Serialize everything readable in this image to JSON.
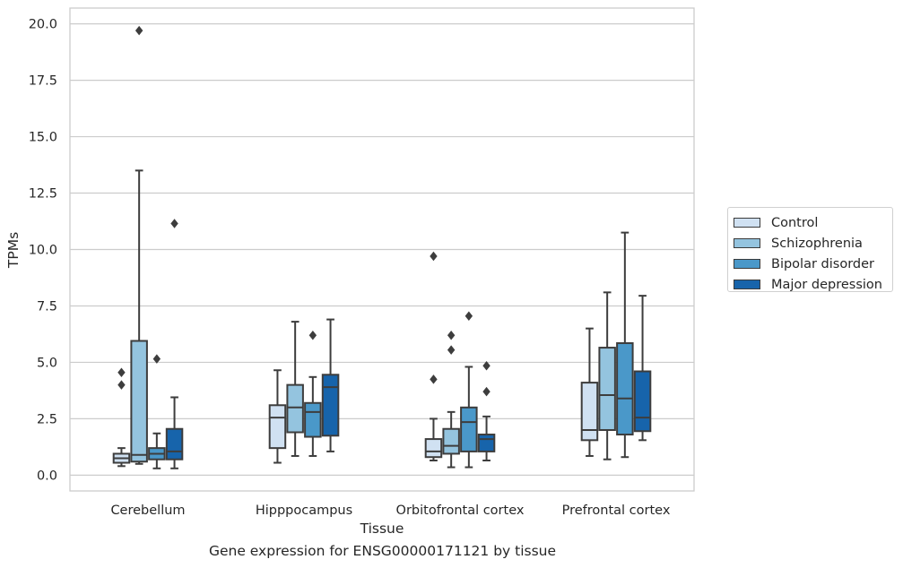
{
  "caption": "Gene expression for ENSG00000171121 by tissue",
  "chart_data": {
    "type": "box",
    "title": "",
    "xlabel": "Tissue",
    "ylabel": "TPMs",
    "ylim": [
      -0.7,
      20.7
    ],
    "yticks": [
      0.0,
      2.5,
      5.0,
      7.5,
      10.0,
      12.5,
      15.0,
      17.5,
      20.0
    ],
    "ytick_labels": [
      "0.0",
      "2.5",
      "5.0",
      "7.5",
      "10.0",
      "12.5",
      "15.0",
      "17.5",
      "20.0"
    ],
    "grid": true,
    "legend_position": "right",
    "categories": [
      "Cerebellum",
      "Hipppocampus",
      "Orbitofrontal cortex",
      "Prefrontal cortex"
    ],
    "series": [
      {
        "name": "Control",
        "color": "#d0e1f2",
        "boxes": [
          {
            "whisker_low": 0.4,
            "q1": 0.55,
            "median": 0.75,
            "q3": 0.95,
            "whisker_high": 1.2,
            "outliers": [
              4.55,
              4.0
            ]
          },
          {
            "whisker_low": 0.55,
            "q1": 1.2,
            "median": 2.55,
            "q3": 3.1,
            "whisker_high": 4.65,
            "outliers": []
          },
          {
            "whisker_low": 0.65,
            "q1": 0.8,
            "median": 1.05,
            "q3": 1.6,
            "whisker_high": 2.5,
            "outliers": [
              9.7,
              4.25
            ]
          },
          {
            "whisker_low": 0.85,
            "q1": 1.55,
            "median": 2.0,
            "q3": 4.1,
            "whisker_high": 6.5,
            "outliers": []
          }
        ]
      },
      {
        "name": "Schizophrenia",
        "color": "#94c4df",
        "boxes": [
          {
            "whisker_low": 0.5,
            "q1": 0.6,
            "median": 0.9,
            "q3": 5.95,
            "whisker_high": 13.5,
            "outliers": [
              19.7
            ]
          },
          {
            "whisker_low": 0.85,
            "q1": 1.9,
            "median": 3.0,
            "q3": 4.0,
            "whisker_high": 6.8,
            "outliers": []
          },
          {
            "whisker_low": 0.35,
            "q1": 0.95,
            "median": 1.3,
            "q3": 2.05,
            "whisker_high": 2.8,
            "outliers": [
              6.2,
              5.55
            ]
          },
          {
            "whisker_low": 0.7,
            "q1": 2.0,
            "median": 3.55,
            "q3": 5.65,
            "whisker_high": 8.1,
            "outliers": []
          }
        ]
      },
      {
        "name": "Bipolar disorder",
        "color": "#4a98c9",
        "boxes": [
          {
            "whisker_low": 0.3,
            "q1": 0.7,
            "median": 0.95,
            "q3": 1.2,
            "whisker_high": 1.85,
            "outliers": [
              5.15
            ]
          },
          {
            "whisker_low": 0.85,
            "q1": 1.7,
            "median": 2.8,
            "q3": 3.2,
            "whisker_high": 4.35,
            "outliers": [
              6.2
            ]
          },
          {
            "whisker_low": 0.35,
            "q1": 1.05,
            "median": 2.35,
            "q3": 3.0,
            "whisker_high": 4.8,
            "outliers": [
              7.05
            ]
          },
          {
            "whisker_low": 0.8,
            "q1": 1.8,
            "median": 3.4,
            "q3": 5.85,
            "whisker_high": 10.75,
            "outliers": []
          }
        ]
      },
      {
        "name": "Major depression",
        "color": "#1764ab",
        "boxes": [
          {
            "whisker_low": 0.3,
            "q1": 0.7,
            "median": 1.05,
            "q3": 2.05,
            "whisker_high": 3.45,
            "outliers": [
              11.15
            ]
          },
          {
            "whisker_low": 1.05,
            "q1": 1.75,
            "median": 3.9,
            "q3": 4.45,
            "whisker_high": 6.9,
            "outliers": []
          },
          {
            "whisker_low": 0.65,
            "q1": 1.05,
            "median": 1.6,
            "q3": 1.8,
            "whisker_high": 2.6,
            "outliers": [
              4.85,
              3.7
            ]
          },
          {
            "whisker_low": 1.55,
            "q1": 1.95,
            "median": 2.55,
            "q3": 4.6,
            "whisker_high": 7.95,
            "outliers": []
          }
        ]
      }
    ]
  }
}
